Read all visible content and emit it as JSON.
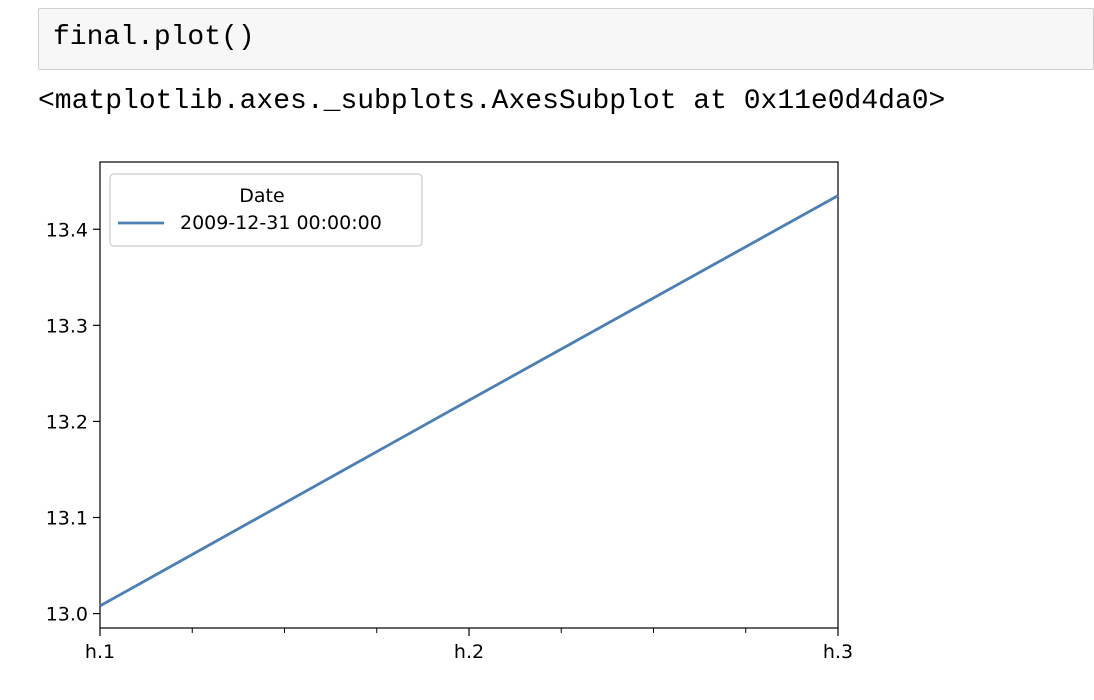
{
  "cell": {
    "code": "final.plot()",
    "output": "<matplotlib.axes._subplots.AxesSubplot at 0x11e0d4da0>"
  },
  "chart_data": {
    "type": "line",
    "x": [
      "h.1",
      "h.2",
      "h.3"
    ],
    "series": [
      {
        "name": "2009-12-31 00:00:00",
        "values": [
          13.008,
          13.222,
          13.435
        ],
        "color": "#4c7fb4"
      }
    ],
    "legend": {
      "title": "Date",
      "placement": "top-left"
    },
    "ylim": [
      12.985,
      13.47
    ],
    "yticks": [
      13.0,
      13.1,
      13.2,
      13.3,
      13.4
    ],
    "ytick_labels": [
      "13.0",
      "13.1",
      "13.2",
      "13.3",
      "13.4"
    ],
    "minor_xticks": true,
    "grid": false,
    "title": "",
    "xlabel": "",
    "ylabel": ""
  }
}
